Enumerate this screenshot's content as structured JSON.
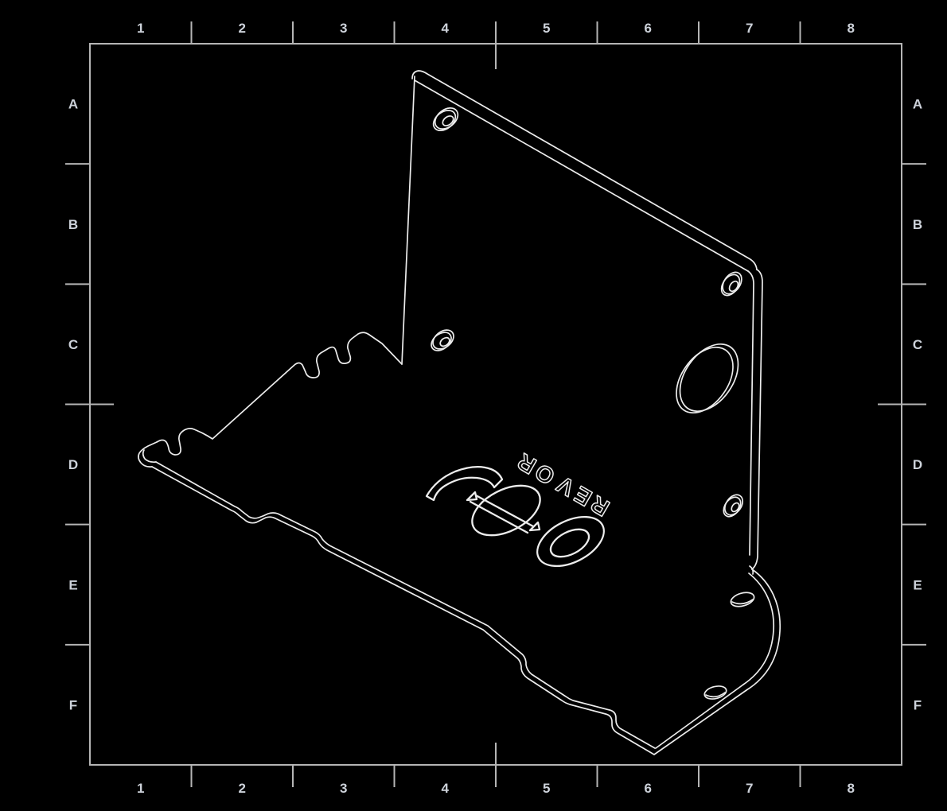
{
  "sheet": {
    "type": "engineering-drawing",
    "background": "#000000",
    "frame_color": "#b5b5b5",
    "label_color": "#cdd2da",
    "part_line_color": "#ececec"
  },
  "zone_grid": {
    "columns": [
      "1",
      "2",
      "3",
      "4",
      "5",
      "6",
      "7",
      "8"
    ],
    "rows": [
      "A",
      "B",
      "C",
      "D",
      "E",
      "F"
    ]
  },
  "engraving": {
    "text": "ROVER",
    "logo": "usu-swoosh-and-coins"
  },
  "part": {
    "name": "sheet-metal L-bracket, isometric view",
    "features": [
      "counterbored hole upper plate",
      "counterbored hole right plate",
      "counterbored hole mid plate",
      "large oval cutout",
      "counterbored hole lower right",
      "edge hole on corner radius",
      "edge hole on corner radius 2",
      "castellated tab edges",
      "rounded bottom corner"
    ]
  }
}
